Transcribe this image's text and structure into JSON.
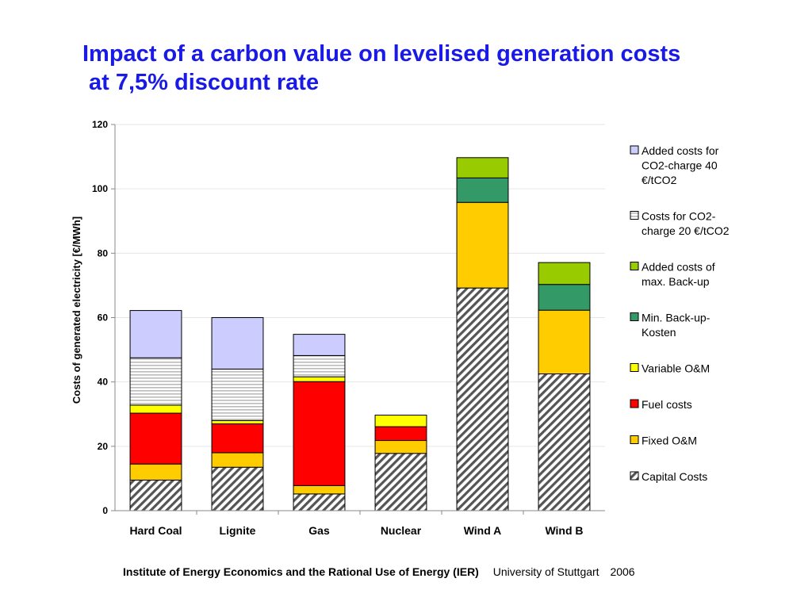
{
  "title_line1": "Impact of a carbon value on levelised generation costs",
  "title_line2": "at 7,5% discount rate",
  "footer": {
    "institute": "Institute of Energy Economics and the Rational Use of Energy (IER)",
    "university": "University of Stuttgart",
    "year": "2006"
  },
  "colors": {
    "capital": "#555555",
    "fixed_om": "#ffcc00",
    "fuel": "#ff0000",
    "variable_om": "#ffff00",
    "min_backup": "#339966",
    "max_backup": "#99cc00",
    "co2_20": "#bbbbbb",
    "co2_40": "#ccccff"
  },
  "chart_data": {
    "type": "bar",
    "stacked": true,
    "title": "",
    "xlabel": "",
    "ylabel": "Costs of generated electricity [€/MWh]",
    "ylim": [
      0,
      120
    ],
    "yticks": [
      0,
      20,
      40,
      60,
      80,
      100,
      120
    ],
    "grid": true,
    "legend_position": "right",
    "categories": [
      "Hard Coal",
      "Lignite",
      "Gas",
      "Nuclear",
      "Wind A",
      "Wind B"
    ],
    "series": [
      {
        "name": "Capital Costs",
        "key": "capital",
        "pattern": "diagonal-hatch",
        "values": [
          9.5,
          13.5,
          5.2,
          17.8,
          69.2,
          42.5
        ]
      },
      {
        "name": "Fixed O&M",
        "key": "fixed_om",
        "pattern": "solid",
        "values": [
          5.0,
          4.5,
          2.6,
          4.0,
          26.6,
          19.8
        ]
      },
      {
        "name": "Fuel costs",
        "key": "fuel",
        "pattern": "solid",
        "values": [
          15.8,
          9.0,
          32.3,
          4.3,
          0,
          0
        ]
      },
      {
        "name": "Variable O&M",
        "key": "variable_om",
        "pattern": "solid",
        "values": [
          2.5,
          1.0,
          1.5,
          3.6,
          0,
          0
        ]
      },
      {
        "name": "Min. Back-up-Kosten",
        "key": "min_backup",
        "pattern": "solid",
        "values": [
          0,
          0,
          0,
          0,
          7.6,
          8.0
        ]
      },
      {
        "name": "Added costs of max. Back-up",
        "key": "max_backup",
        "pattern": "solid",
        "values": [
          0,
          0,
          0,
          0,
          6.3,
          6.8
        ]
      },
      {
        "name": "Costs for CO2-charge 20 €/tCO2",
        "key": "co2_20",
        "pattern": "horizontal-lines",
        "values": [
          14.7,
          16.0,
          6.6,
          0,
          0,
          0
        ]
      },
      {
        "name": "Added costs for CO2-charge 40 €/tCO2",
        "key": "co2_40",
        "pattern": "solid",
        "values": [
          14.7,
          16.0,
          6.6,
          0,
          0,
          0
        ]
      }
    ],
    "legend": [
      {
        "key": "co2_40",
        "lines": [
          "Added costs for",
          "CO2-charge 40",
          "€/tCO2"
        ]
      },
      {
        "key": "co2_20",
        "lines": [
          "Costs for CO2-",
          "charge 20 €/tCO2"
        ]
      },
      {
        "key": "max_backup",
        "lines": [
          "Added costs of",
          "max. Back-up"
        ]
      },
      {
        "key": "min_backup",
        "lines": [
          "Min. Back-up-",
          "Kosten"
        ]
      },
      {
        "key": "variable_om",
        "lines": [
          "Variable O&M"
        ]
      },
      {
        "key": "fuel",
        "lines": [
          "Fuel costs"
        ]
      },
      {
        "key": "fixed_om",
        "lines": [
          "Fixed O&M"
        ]
      },
      {
        "key": "capital",
        "lines": [
          "Capital Costs"
        ]
      }
    ]
  }
}
